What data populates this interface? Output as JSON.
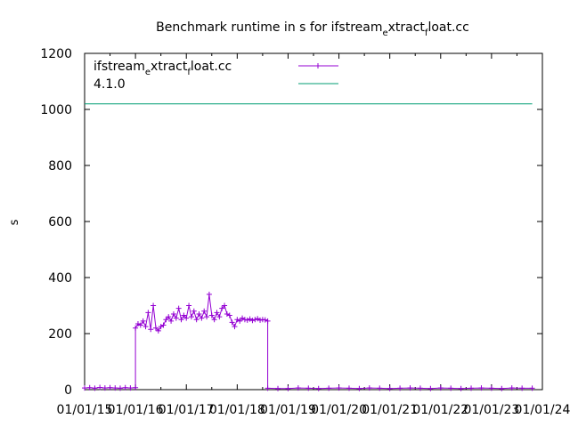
{
  "chart_data": {
    "type": "line",
    "title": "Benchmark runtime in s for ifstream_extract_float.cc",
    "title_parts": {
      "main": "Benchmark runtime in s for ifstream",
      "sub1": "e",
      "mid": "xtract",
      "sub2": "f",
      "tail": "loat.cc"
    },
    "xlabel": "",
    "ylabel": "s",
    "ylim": [
      0,
      1200
    ],
    "xlim": [
      2015,
      2024
    ],
    "yticks": [
      0,
      200,
      400,
      600,
      800,
      1000,
      1200
    ],
    "xticks": [
      {
        "value": 2015,
        "label": "01/01/15"
      },
      {
        "value": 2016,
        "label": "01/01/16"
      },
      {
        "value": 2017,
        "label": "01/01/17"
      },
      {
        "value": 2018,
        "label": "01/01/18"
      },
      {
        "value": 2019,
        "label": "01/01/19"
      },
      {
        "value": 2020,
        "label": "01/01/20"
      },
      {
        "value": 2021,
        "label": "01/01/21"
      },
      {
        "value": 2022,
        "label": "01/01/22"
      },
      {
        "value": 2023,
        "label": "01/01/23"
      },
      {
        "value": 2024,
        "label": "01/01/24"
      }
    ],
    "legend_position": "top-left",
    "grid": false,
    "series": [
      {
        "name": "ifstream_extract_float.cc",
        "name_parts": {
          "main": "ifstream",
          "sub1": "e",
          "mid": "xtract",
          "sub2": "f",
          "tail": "loat.cc"
        },
        "color": "#9400d3",
        "marker": "plus",
        "x": [
          2015.0,
          2015.1,
          2015.2,
          2015.3,
          2015.4,
          2015.5,
          2015.6,
          2015.7,
          2015.8,
          2015.9,
          2016.0,
          2016.0,
          2016.05,
          2016.1,
          2016.15,
          2016.2,
          2016.25,
          2016.3,
          2016.35,
          2016.4,
          2016.45,
          2016.5,
          2016.55,
          2016.6,
          2016.65,
          2016.7,
          2016.75,
          2016.8,
          2016.85,
          2016.9,
          2016.95,
          2017.0,
          2017.05,
          2017.1,
          2017.15,
          2017.2,
          2017.25,
          2017.3,
          2017.35,
          2017.4,
          2017.45,
          2017.5,
          2017.55,
          2017.6,
          2017.65,
          2017.7,
          2017.75,
          2017.8,
          2017.85,
          2017.9,
          2017.95,
          2018.0,
          2018.05,
          2018.1,
          2018.15,
          2018.2,
          2018.25,
          2018.3,
          2018.35,
          2018.4,
          2018.45,
          2018.5,
          2018.55,
          2018.6,
          2018.6,
          2018.8,
          2019.0,
          2019.2,
          2019.4,
          2019.6,
          2019.8,
          2020.0,
          2020.2,
          2020.4,
          2020.6,
          2020.8,
          2021.0,
          2021.2,
          2021.4,
          2021.6,
          2021.8,
          2022.0,
          2022.2,
          2022.4,
          2022.6,
          2022.8,
          2023.0,
          2023.2,
          2023.4,
          2023.6,
          2023.8
        ],
        "y": [
          6,
          7,
          5,
          8,
          6,
          7,
          6,
          5,
          7,
          6,
          7,
          220,
          235,
          230,
          245,
          225,
          275,
          215,
          300,
          220,
          210,
          225,
          230,
          250,
          260,
          245,
          270,
          255,
          290,
          250,
          265,
          255,
          300,
          260,
          280,
          250,
          270,
          255,
          280,
          260,
          340,
          265,
          250,
          275,
          260,
          290,
          300,
          270,
          265,
          240,
          225,
          250,
          245,
          255,
          250,
          248,
          252,
          247,
          250,
          253,
          248,
          250,
          249,
          245,
          5,
          4,
          4,
          6,
          5,
          4,
          5,
          6,
          5,
          4,
          6,
          5,
          4,
          5,
          6,
          5,
          4,
          6,
          5,
          4,
          5,
          6,
          5,
          4,
          6,
          5,
          5
        ]
      },
      {
        "name": "4.1.0",
        "color": "#009e73",
        "marker": "none",
        "x": [
          2015.0,
          2023.8
        ],
        "y": [
          1020,
          1020
        ]
      }
    ]
  }
}
